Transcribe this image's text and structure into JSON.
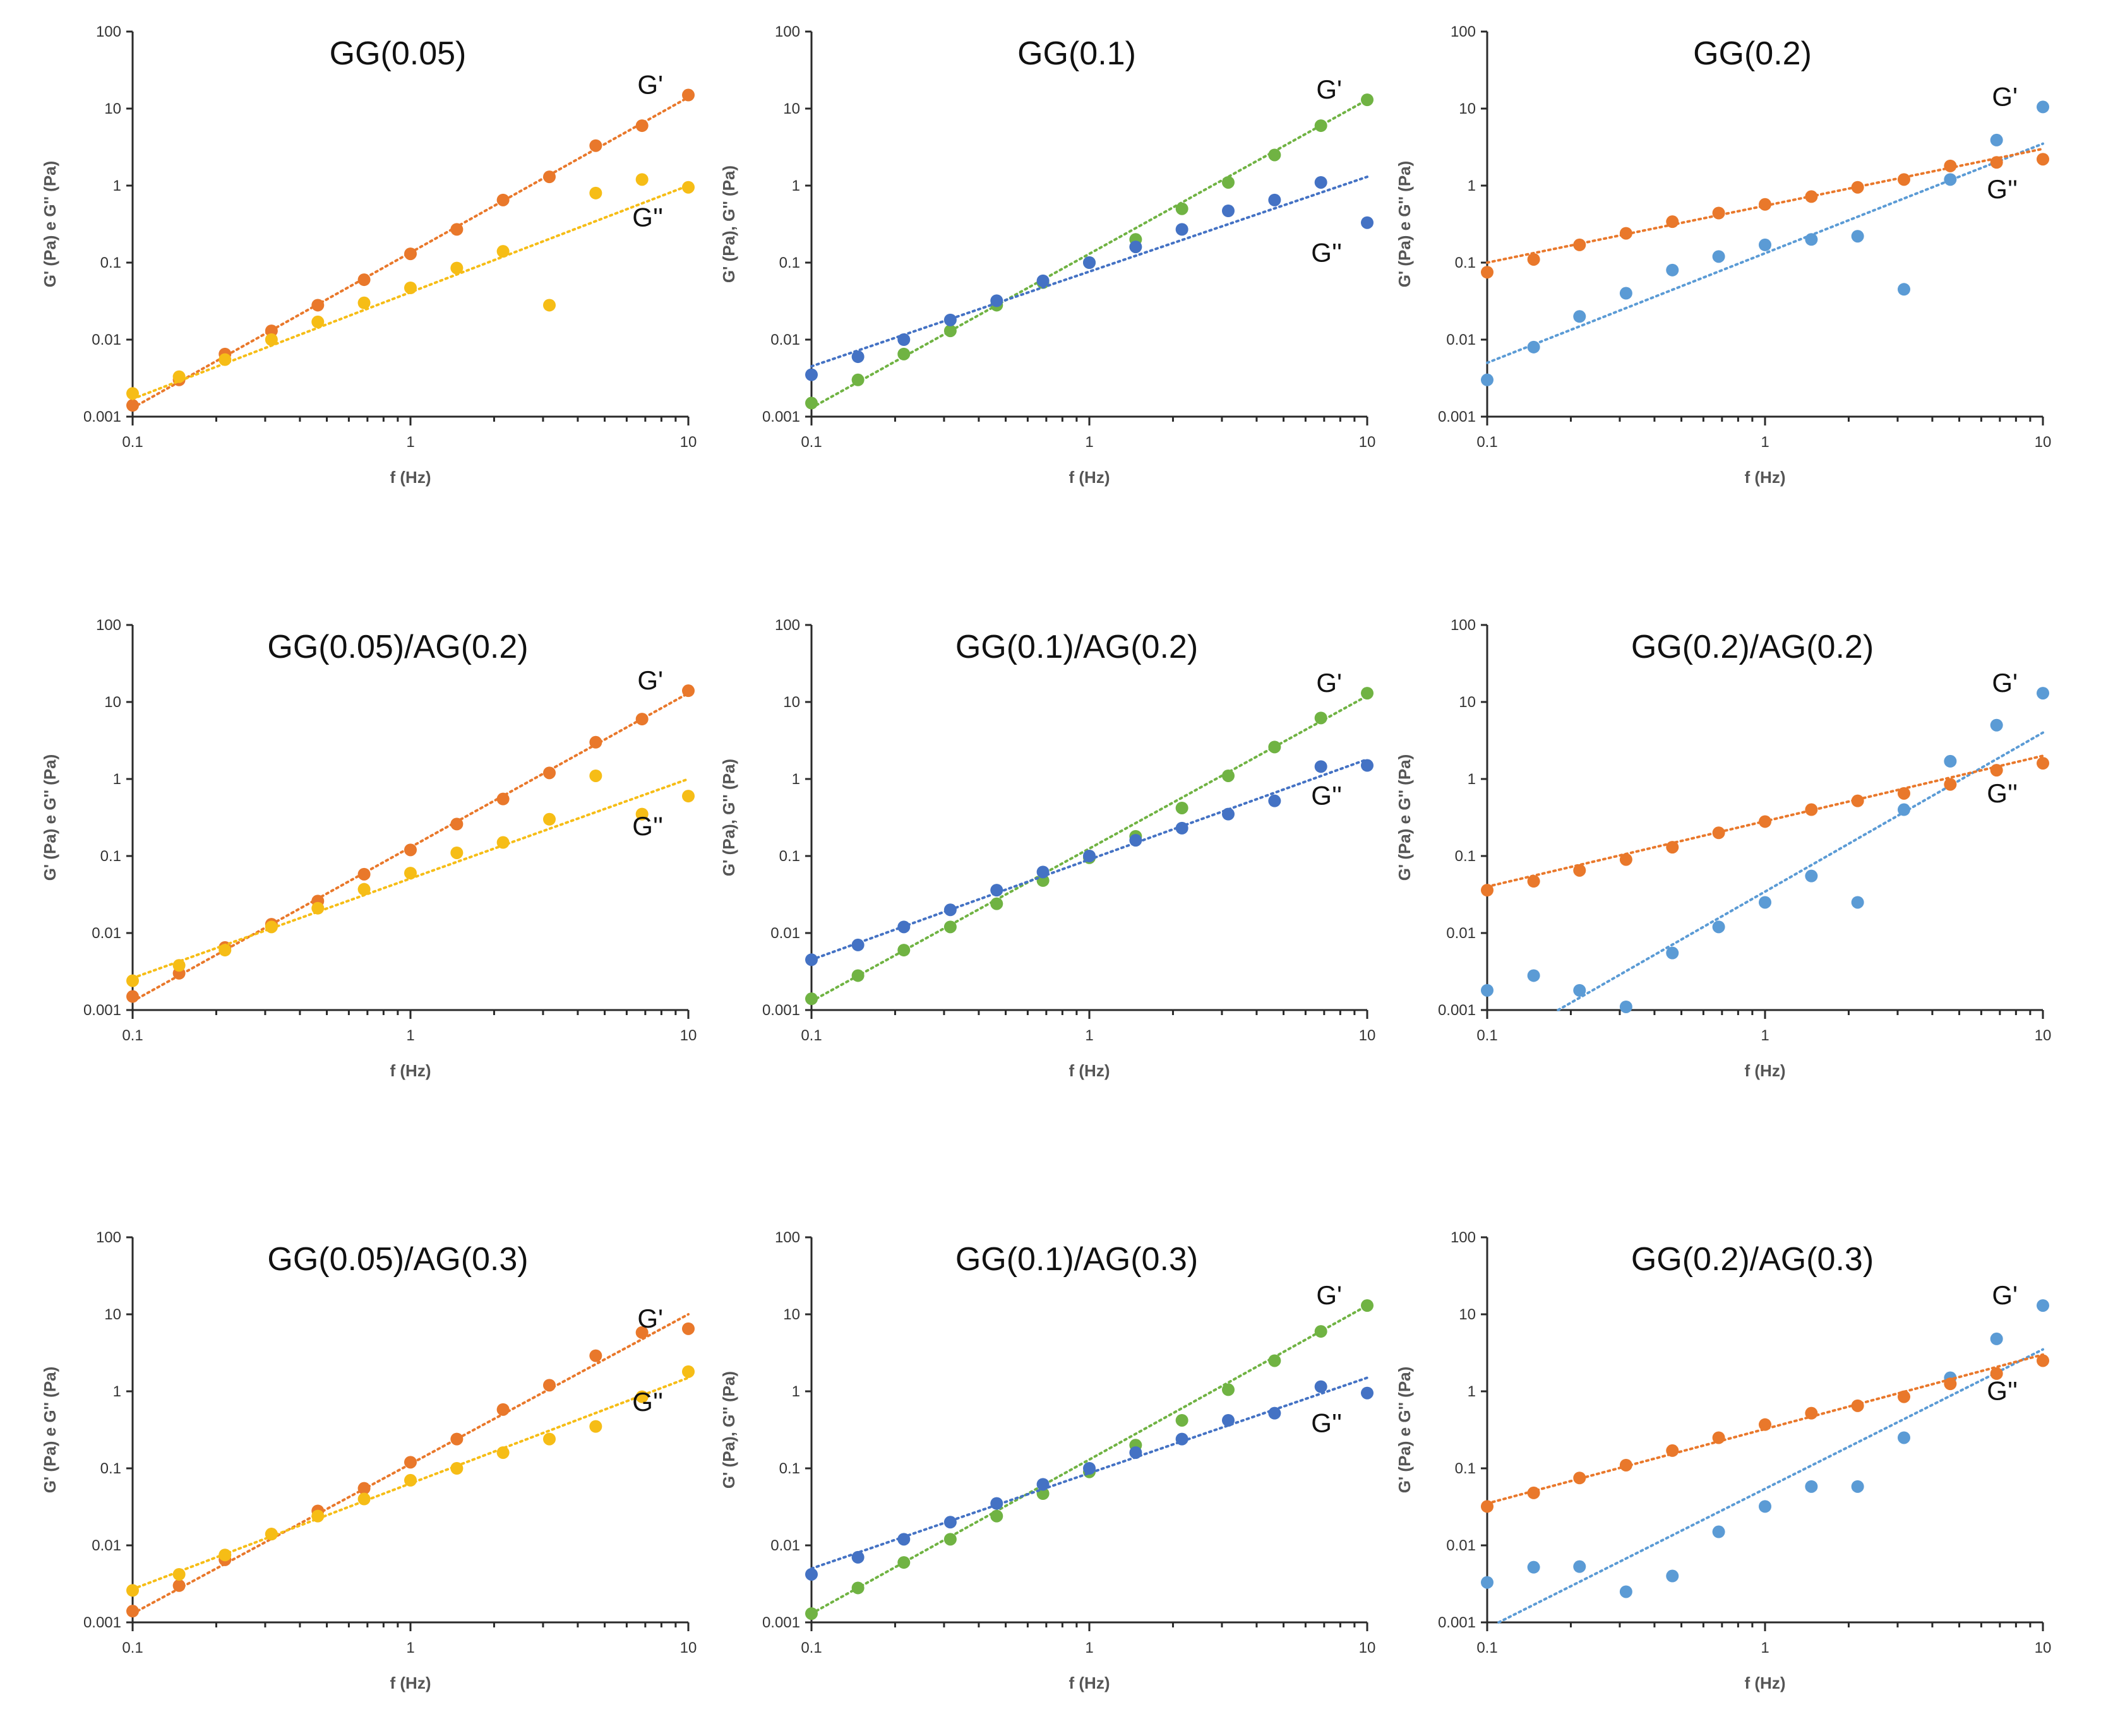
{
  "colors": {
    "orange": "#e9782b",
    "yellow": "#f6bd16",
    "green": "#70b343",
    "blue": "#4472c4",
    "lightblue": "#5b9bd5"
  },
  "chart_data": [
    {
      "type": "scatter",
      "title": "GG(0.05)",
      "xlabel": "f (Hz)",
      "ylabel": "G' (Pa) e G'' (Pa)",
      "xscale": "log",
      "yscale": "log",
      "xlim": [
        0.1,
        10
      ],
      "ylim": [
        0.001,
        100
      ],
      "xticks": [
        "0.1",
        "1",
        "10"
      ],
      "yticks": [
        "0.001",
        "0.01",
        "0.1",
        "1",
        "10",
        "100"
      ],
      "series": [
        {
          "name": "G'",
          "color": "orange",
          "x": [
            0.1,
            0.147,
            0.215,
            0.316,
            0.464,
            0.681,
            1,
            1.468,
            2.154,
            3.162,
            4.642,
            6.813,
            10
          ],
          "y": [
            0.0014,
            0.003,
            0.0065,
            0.013,
            0.028,
            0.06,
            0.13,
            0.27,
            0.65,
            1.3,
            3.3,
            6,
            15
          ],
          "trend": [
            [
              0.1,
              0.0013
            ],
            [
              10,
              14
            ]
          ]
        },
        {
          "name": "G''",
          "color": "yellow",
          "x": [
            0.1,
            0.147,
            0.215,
            0.316,
            0.464,
            0.681,
            1,
            1.468,
            2.154,
            3.162,
            4.642,
            6.813,
            10
          ],
          "y": [
            0.002,
            0.0033,
            0.0055,
            0.01,
            0.017,
            0.03,
            0.047,
            0.085,
            0.14,
            0.028,
            0.8,
            1.2,
            0.95
          ],
          "trend": [
            [
              0.1,
              0.0017
            ],
            [
              10,
              1.0
            ]
          ]
        }
      ]
    },
    {
      "type": "scatter",
      "title": "GG(0.1)",
      "xlabel": "f (Hz)",
      "ylabel": "G' (Pa), G'' (Pa)",
      "xscale": "log",
      "yscale": "log",
      "xlim": [
        0.1,
        10
      ],
      "ylim": [
        0.001,
        100
      ],
      "xticks": [
        "0.1",
        "1",
        "10"
      ],
      "yticks": [
        "0.001",
        "0.01",
        "0.1",
        "1",
        "10",
        "100"
      ],
      "series": [
        {
          "name": "G'",
          "color": "green",
          "x": [
            0.1,
            0.147,
            0.215,
            0.316,
            0.464,
            0.681,
            1,
            1.468,
            2.154,
            3.162,
            4.642,
            6.813,
            10
          ],
          "y": [
            0.0015,
            0.003,
            0.0065,
            0.013,
            0.028,
            0.055,
            0.1,
            0.2,
            0.5,
            1.1,
            2.5,
            6,
            13
          ],
          "trend": [
            [
              0.1,
              0.0013
            ],
            [
              10,
              13
            ]
          ]
        },
        {
          "name": "G''",
          "color": "blue",
          "x": [
            0.1,
            0.147,
            0.215,
            0.316,
            0.464,
            0.681,
            1,
            1.468,
            2.154,
            3.162,
            4.642,
            6.813,
            10
          ],
          "y": [
            0.0035,
            0.006,
            0.01,
            0.018,
            0.032,
            0.058,
            0.1,
            0.16,
            0.27,
            0.47,
            0.65,
            1.1,
            0.33
          ],
          "trend": [
            [
              0.1,
              0.0045
            ],
            [
              10,
              1.3
            ]
          ]
        }
      ]
    },
    {
      "type": "scatter",
      "title": "GG(0.2)",
      "xlabel": "f (Hz)",
      "ylabel": "G' (Pa) e G'' (Pa)",
      "xscale": "log",
      "yscale": "log",
      "xlim": [
        0.1,
        10
      ],
      "ylim": [
        0.001,
        100
      ],
      "xticks": [
        "0.1",
        "1",
        "10"
      ],
      "yticks": [
        "0.001",
        "0.01",
        "0.1",
        "1",
        "10",
        "100"
      ],
      "series": [
        {
          "name": "G'",
          "color": "lightblue",
          "x": [
            0.1,
            0.147,
            0.215,
            0.316,
            0.464,
            0.681,
            1,
            1.468,
            2.154,
            3.162,
            4.642,
            6.813,
            10
          ],
          "y": [
            0.003,
            0.008,
            0.02,
            0.04,
            0.08,
            0.12,
            0.17,
            0.2,
            0.22,
            0.045,
            1.2,
            3.9,
            10.5
          ],
          "trend": [
            [
              0.1,
              0.005
            ],
            [
              10,
              3.5
            ]
          ]
        },
        {
          "name": "G''",
          "color": "orange",
          "x": [
            0.1,
            0.147,
            0.215,
            0.316,
            0.464,
            0.681,
            1,
            1.468,
            2.154,
            3.162,
            4.642,
            6.813,
            10
          ],
          "y": [
            0.075,
            0.11,
            0.17,
            0.24,
            0.34,
            0.44,
            0.57,
            0.72,
            0.95,
            1.2,
            1.8,
            2.0,
            2.2
          ],
          "trend": [
            [
              0.1,
              0.1
            ],
            [
              10,
              3.0
            ]
          ]
        }
      ]
    },
    {
      "type": "scatter",
      "title": "GG(0.05)/AG(0.2)",
      "xlabel": "f (Hz)",
      "ylabel": "G' (Pa) e G'' (Pa)",
      "xscale": "log",
      "yscale": "log",
      "xlim": [
        0.1,
        10
      ],
      "ylim": [
        0.001,
        100
      ],
      "xticks": [
        "0.1",
        "1",
        "10"
      ],
      "yticks": [
        "0.001",
        "0.01",
        "0.1",
        "1",
        "10",
        "100"
      ],
      "series": [
        {
          "name": "G'",
          "color": "orange",
          "x": [
            0.1,
            0.147,
            0.215,
            0.316,
            0.464,
            0.681,
            1,
            1.468,
            2.154,
            3.162,
            4.642,
            6.813,
            10
          ],
          "y": [
            0.0015,
            0.003,
            0.0065,
            0.013,
            0.026,
            0.058,
            0.12,
            0.26,
            0.55,
            1.2,
            3.0,
            6,
            14
          ],
          "trend": [
            [
              0.1,
              0.0013
            ],
            [
              10,
              13
            ]
          ]
        },
        {
          "name": "G''",
          "color": "yellow",
          "x": [
            0.1,
            0.147,
            0.215,
            0.316,
            0.464,
            0.681,
            1,
            1.468,
            2.154,
            3.162,
            4.642,
            6.813,
            10
          ],
          "y": [
            0.0024,
            0.0038,
            0.006,
            0.012,
            0.021,
            0.037,
            0.06,
            0.11,
            0.15,
            0.3,
            1.1,
            0.35,
            0.6
          ],
          "trend": [
            [
              0.1,
              0.0026
            ],
            [
              10,
              1.0
            ]
          ]
        }
      ]
    },
    {
      "type": "scatter",
      "title": "GG(0.1)/AG(0.2)",
      "xlabel": "f (Hz)",
      "ylabel": "G' (Pa), G'' (Pa)",
      "xscale": "log",
      "yscale": "log",
      "xlim": [
        0.1,
        10
      ],
      "ylim": [
        0.001,
        100
      ],
      "xticks": [
        "0.1",
        "1",
        "10"
      ],
      "yticks": [
        "0.001",
        "0.01",
        "0.1",
        "1",
        "10",
        "100"
      ],
      "series": [
        {
          "name": "G'",
          "color": "green",
          "x": [
            0.1,
            0.147,
            0.215,
            0.316,
            0.464,
            0.681,
            1,
            1.468,
            2.154,
            3.162,
            4.642,
            6.813,
            10
          ],
          "y": [
            0.0014,
            0.0028,
            0.006,
            0.012,
            0.024,
            0.048,
            0.095,
            0.18,
            0.42,
            1.1,
            2.6,
            6.2,
            13
          ],
          "trend": [
            [
              0.1,
              0.0013
            ],
            [
              10,
              12
            ]
          ]
        },
        {
          "name": "G''",
          "color": "blue",
          "x": [
            0.1,
            0.147,
            0.215,
            0.316,
            0.464,
            0.681,
            1,
            1.468,
            2.154,
            3.162,
            4.642,
            6.813,
            10
          ],
          "y": [
            0.0045,
            0.007,
            0.012,
            0.02,
            0.036,
            0.062,
            0.1,
            0.16,
            0.23,
            0.35,
            0.52,
            1.45,
            1.5
          ],
          "trend": [
            [
              0.1,
              0.0045
            ],
            [
              10,
              1.8
            ]
          ]
        }
      ]
    },
    {
      "type": "scatter",
      "title": "GG(0.2)/AG(0.2)",
      "xlabel": "f (Hz)",
      "ylabel": "G' (Pa) e G'' (Pa)",
      "xscale": "log",
      "yscale": "log",
      "xlim": [
        0.1,
        10
      ],
      "ylim": [
        0.001,
        100
      ],
      "xticks": [
        "0.1",
        "1",
        "10"
      ],
      "yticks": [
        "0.001",
        "0.01",
        "0.1",
        "1",
        "10",
        "100"
      ],
      "series": [
        {
          "name": "G'",
          "color": "lightblue",
          "x": [
            0.1,
            0.147,
            0.215,
            0.316,
            0.464,
            0.681,
            1,
            1.468,
            2.154,
            3.162,
            4.642,
            6.813,
            10
          ],
          "y": [
            0.0018,
            0.0028,
            0.0018,
            0.0011,
            0.0055,
            0.012,
            0.025,
            0.055,
            0.025,
            0.4,
            1.7,
            5,
            13
          ],
          "trend": [
            [
              0.18,
              0.001
            ],
            [
              10,
              4
            ]
          ]
        },
        {
          "name": "G''",
          "color": "orange",
          "x": [
            0.1,
            0.147,
            0.215,
            0.316,
            0.464,
            0.681,
            1,
            1.468,
            2.154,
            3.162,
            4.642,
            6.813,
            10
          ],
          "y": [
            0.036,
            0.047,
            0.065,
            0.09,
            0.13,
            0.2,
            0.28,
            0.4,
            0.52,
            0.65,
            0.85,
            1.3,
            1.6
          ],
          "trend": [
            [
              0.1,
              0.04
            ],
            [
              10,
              2.0
            ]
          ]
        }
      ]
    },
    {
      "type": "scatter",
      "title": "GG(0.05)/AG(0.3)",
      "xlabel": "f (Hz)",
      "ylabel": "G' (Pa) e G'' (Pa)",
      "xscale": "log",
      "yscale": "log",
      "xlim": [
        0.1,
        10
      ],
      "ylim": [
        0.001,
        100
      ],
      "xticks": [
        "0.1",
        "1",
        "10"
      ],
      "yticks": [
        "0.001",
        "0.01",
        "0.1",
        "1",
        "10",
        "100"
      ],
      "series": [
        {
          "name": "G'",
          "color": "orange",
          "x": [
            0.1,
            0.147,
            0.215,
            0.316,
            0.464,
            0.681,
            1,
            1.468,
            2.154,
            3.162,
            4.642,
            6.813,
            10
          ],
          "y": [
            0.0014,
            0.003,
            0.0065,
            0.014,
            0.028,
            0.055,
            0.12,
            0.24,
            0.58,
            1.2,
            2.9,
            5.8,
            6.5
          ],
          "trend": [
            [
              0.1,
              0.0013
            ],
            [
              10,
              10
            ]
          ]
        },
        {
          "name": "G''",
          "color": "yellow",
          "x": [
            0.1,
            0.147,
            0.215,
            0.316,
            0.464,
            0.681,
            1,
            1.468,
            2.154,
            3.162,
            4.642,
            6.813,
            10
          ],
          "y": [
            0.0026,
            0.0042,
            0.0075,
            0.014,
            0.024,
            0.04,
            0.07,
            0.1,
            0.16,
            0.24,
            0.35,
            0.85,
            1.8
          ],
          "trend": [
            [
              0.1,
              0.0027
            ],
            [
              10,
              1.5
            ]
          ]
        }
      ]
    },
    {
      "type": "scatter",
      "title": "GG(0.1)/AG(0.3)",
      "xlabel": "f (Hz)",
      "ylabel": "G' (Pa), G'' (Pa)",
      "xscale": "log",
      "yscale": "log",
      "xlim": [
        0.1,
        10
      ],
      "ylim": [
        0.001,
        100
      ],
      "xticks": [
        "0.1",
        "1",
        "10"
      ],
      "yticks": [
        "0.001",
        "0.01",
        "0.1",
        "1",
        "10",
        "100"
      ],
      "series": [
        {
          "name": "G'",
          "color": "green",
          "x": [
            0.1,
            0.147,
            0.215,
            0.316,
            0.464,
            0.681,
            1,
            1.468,
            2.154,
            3.162,
            4.642,
            6.813,
            10
          ],
          "y": [
            0.0013,
            0.0028,
            0.006,
            0.012,
            0.024,
            0.047,
            0.09,
            0.2,
            0.42,
            1.05,
            2.5,
            6,
            13
          ],
          "trend": [
            [
              0.1,
              0.0013
            ],
            [
              10,
              13
            ]
          ]
        },
        {
          "name": "G''",
          "color": "blue",
          "x": [
            0.1,
            0.147,
            0.215,
            0.316,
            0.464,
            0.681,
            1,
            1.468,
            2.154,
            3.162,
            4.642,
            6.813,
            10
          ],
          "y": [
            0.0042,
            0.007,
            0.012,
            0.02,
            0.035,
            0.062,
            0.1,
            0.16,
            0.24,
            0.42,
            0.52,
            1.15,
            0.95
          ],
          "trend": [
            [
              0.1,
              0.005
            ],
            [
              10,
              1.5
            ]
          ]
        }
      ]
    },
    {
      "type": "scatter",
      "title": "GG(0.2)/AG(0.3)",
      "xlabel": "f (Hz)",
      "ylabel": "G' (Pa) e G'' (Pa)",
      "xscale": "log",
      "yscale": "log",
      "xlim": [
        0.1,
        10
      ],
      "ylim": [
        0.001,
        100
      ],
      "xticks": [
        "0.1",
        "1",
        "10"
      ],
      "yticks": [
        "0.001",
        "0.01",
        "0.1",
        "1",
        "10",
        "100"
      ],
      "series": [
        {
          "name": "G'",
          "color": "lightblue",
          "x": [
            0.1,
            0.147,
            0.215,
            0.316,
            0.464,
            0.681,
            1,
            1.468,
            2.154,
            3.162,
            4.642,
            6.813,
            10
          ],
          "y": [
            0.0033,
            0.0052,
            0.0053,
            0.0025,
            0.004,
            0.015,
            0.032,
            0.058,
            0.058,
            0.25,
            1.5,
            4.8,
            13
          ],
          "trend": [
            [
              0.11,
              0.001
            ],
            [
              10,
              3.5
            ]
          ]
        },
        {
          "name": "G''",
          "color": "orange",
          "x": [
            0.1,
            0.147,
            0.215,
            0.316,
            0.464,
            0.681,
            1,
            1.468,
            2.154,
            3.162,
            4.642,
            6.813,
            10
          ],
          "y": [
            0.032,
            0.048,
            0.075,
            0.11,
            0.17,
            0.25,
            0.37,
            0.52,
            0.65,
            0.85,
            1.25,
            1.7,
            2.5
          ],
          "trend": [
            [
              0.1,
              0.035
            ],
            [
              10,
              3.0
            ]
          ]
        }
      ]
    }
  ]
}
